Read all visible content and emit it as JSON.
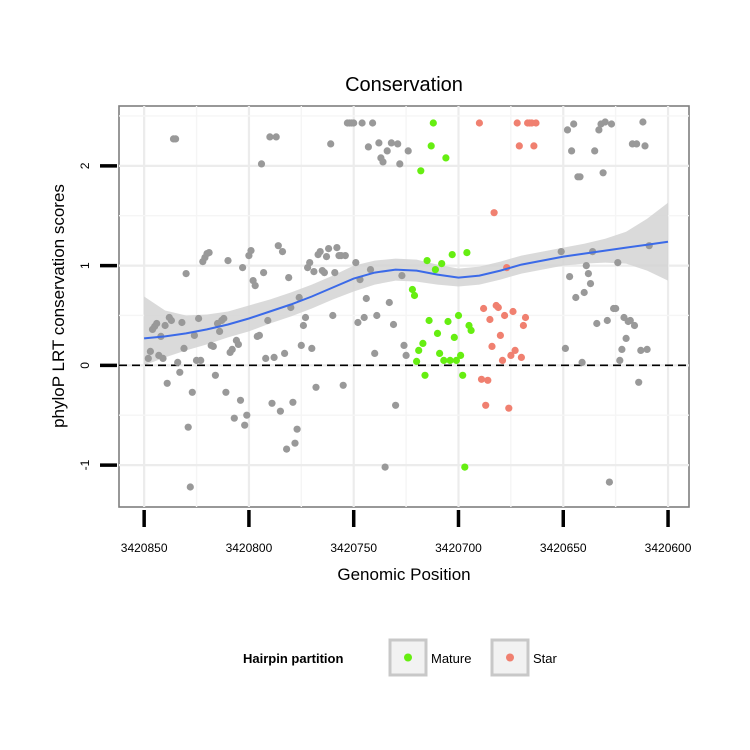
{
  "chart_data": {
    "type": "scatter",
    "title": "Conservation",
    "xlabel": "Genomic Position",
    "ylabel": "phyloP LRT conservation scores",
    "xlim": [
      3420862,
      3420590
    ],
    "ylim": [
      -1.42,
      2.6
    ],
    "x_reversed": true,
    "xticks": [
      {
        "value": 3420850,
        "label": "3420850"
      },
      {
        "value": 3420800,
        "label": "3420800"
      },
      {
        "value": 3420750,
        "label": "3420750"
      },
      {
        "value": 3420700,
        "label": "3420700"
      },
      {
        "value": 3420650,
        "label": "3420650"
      },
      {
        "value": 3420600,
        "label": "3420600"
      }
    ],
    "yticks": [
      {
        "value": -1,
        "label": "-1"
      },
      {
        "value": 0,
        "label": "0"
      },
      {
        "value": 1,
        "label": "1"
      },
      {
        "value": 2,
        "label": "2"
      }
    ],
    "grid": true,
    "reference_line": {
      "y": 0,
      "style": "dashed"
    },
    "legend": {
      "title": "Hairpin partition",
      "position": "bottom",
      "entries": [
        {
          "label": "Mature",
          "color": "#66ee11"
        },
        {
          "label": "Star",
          "color": "#f08070"
        }
      ]
    },
    "colors": {
      "other": "#999999",
      "mature": "#66ee11",
      "star": "#f08070",
      "smooth": "#3b6ae8",
      "band": "#d3d3d3"
    },
    "series": [
      {
        "group": "other",
        "points": [
          [
            3420848,
            0.07
          ],
          [
            3420847,
            0.14
          ],
          [
            3420846,
            0.36
          ],
          [
            3420845,
            0.39
          ],
          [
            3420844,
            0.42
          ],
          [
            3420843,
            0.1
          ],
          [
            3420842,
            0.29
          ],
          [
            3420841,
            0.07
          ],
          [
            3420840,
            0.4
          ],
          [
            3420839,
            -0.18
          ],
          [
            3420838,
            0.48
          ],
          [
            3420837,
            0.45
          ],
          [
            3420836,
            2.27
          ],
          [
            3420835,
            2.27
          ],
          [
            3420834,
            0.03
          ],
          [
            3420833,
            -0.07
          ],
          [
            3420832,
            0.43
          ],
          [
            3420831,
            0.17
          ],
          [
            3420830,
            0.92
          ],
          [
            3420829,
            -0.62
          ],
          [
            3420828,
            -1.22
          ],
          [
            3420827,
            -0.27
          ],
          [
            3420826,
            0.3
          ],
          [
            3420825,
            0.05
          ],
          [
            3420824,
            0.47
          ],
          [
            3420823,
            0.05
          ],
          [
            3420822,
            1.04
          ],
          [
            3420821,
            1.08
          ],
          [
            3420820,
            1.12
          ],
          [
            3420819,
            1.13
          ],
          [
            3420818,
            0.2
          ],
          [
            3420817,
            0.19
          ],
          [
            3420816,
            -0.1
          ],
          [
            3420815,
            0.42
          ],
          [
            3420814,
            0.34
          ],
          [
            3420813,
            0.45
          ],
          [
            3420812,
            0.47
          ],
          [
            3420811,
            -0.27
          ],
          [
            3420810,
            1.05
          ],
          [
            3420809,
            0.13
          ],
          [
            3420808,
            0.16
          ],
          [
            3420807,
            -0.53
          ],
          [
            3420806,
            0.25
          ],
          [
            3420805,
            0.21
          ],
          [
            3420804,
            -0.35
          ],
          [
            3420803,
            0.98
          ],
          [
            3420802,
            -0.6
          ],
          [
            3420801,
            -0.5
          ],
          [
            3420800,
            1.1
          ],
          [
            3420799,
            1.15
          ],
          [
            3420798,
            0.85
          ],
          [
            3420797,
            0.8
          ],
          [
            3420796,
            0.29
          ],
          [
            3420795,
            0.3
          ],
          [
            3420794,
            2.02
          ],
          [
            3420793,
            0.93
          ],
          [
            3420792,
            0.07
          ],
          [
            3420791,
            0.45
          ],
          [
            3420790,
            2.29
          ],
          [
            3420789,
            -0.38
          ],
          [
            3420788,
            0.08
          ],
          [
            3420787,
            2.29
          ],
          [
            3420786,
            1.2
          ],
          [
            3420785,
            -0.46
          ],
          [
            3420784,
            1.14
          ],
          [
            3420783,
            0.12
          ],
          [
            3420782,
            -0.84
          ],
          [
            3420781,
            0.88
          ],
          [
            3420780,
            0.58
          ],
          [
            3420779,
            -0.37
          ],
          [
            3420778,
            -0.78
          ],
          [
            3420777,
            -0.64
          ],
          [
            3420776,
            0.68
          ],
          [
            3420775,
            0.2
          ],
          [
            3420774,
            0.4
          ],
          [
            3420773,
            0.48
          ],
          [
            3420772,
            0.98
          ],
          [
            3420771,
            1.03
          ],
          [
            3420770,
            0.17
          ],
          [
            3420769,
            0.94
          ],
          [
            3420768,
            -0.22
          ],
          [
            3420767,
            1.11
          ],
          [
            3420766,
            1.14
          ],
          [
            3420765,
            0.95
          ],
          [
            3420764,
            0.93
          ],
          [
            3420763,
            1.09
          ],
          [
            3420762,
            1.17
          ],
          [
            3420761,
            2.22
          ],
          [
            3420760,
            0.5
          ],
          [
            3420759,
            0.93
          ],
          [
            3420758,
            1.18
          ],
          [
            3420757,
            1.1
          ],
          [
            3420756,
            1.1
          ],
          [
            3420755,
            -0.2
          ],
          [
            3420754,
            1.1
          ],
          [
            3420753,
            2.43
          ],
          [
            3420752,
            2.43
          ],
          [
            3420751,
            2.43
          ],
          [
            3420750,
            2.43
          ],
          [
            3420749,
            1.03
          ],
          [
            3420748,
            0.43
          ],
          [
            3420747,
            0.86
          ],
          [
            3420746,
            2.43
          ],
          [
            3420745,
            0.48
          ],
          [
            3420744,
            0.67
          ],
          [
            3420743,
            2.19
          ],
          [
            3420742,
            0.96
          ],
          [
            3420741,
            2.43
          ],
          [
            3420740,
            0.12
          ],
          [
            3420739,
            0.5
          ],
          [
            3420738,
            2.23
          ],
          [
            3420737,
            2.08
          ],
          [
            3420736,
            2.04
          ],
          [
            3420735,
            -1.02
          ],
          [
            3420734,
            2.15
          ],
          [
            3420733,
            0.63
          ],
          [
            3420732,
            2.23
          ],
          [
            3420731,
            0.41
          ],
          [
            3420730,
            -0.4
          ],
          [
            3420729,
            2.22
          ],
          [
            3420728,
            2.02
          ],
          [
            3420727,
            0.9
          ],
          [
            3420726,
            0.2
          ],
          [
            3420725,
            0.1
          ],
          [
            3420724,
            2.15
          ],
          [
            3420651,
            1.14
          ],
          [
            3420649,
            0.17
          ],
          [
            3420648,
            2.36
          ],
          [
            3420647,
            0.89
          ],
          [
            3420646,
            2.15
          ],
          [
            3420645,
            2.42
          ],
          [
            3420644,
            0.68
          ],
          [
            3420643,
            1.89
          ],
          [
            3420642,
            1.89
          ],
          [
            3420641,
            0.03
          ],
          [
            3420640,
            0.73
          ],
          [
            3420639,
            1.0
          ],
          [
            3420638,
            0.92
          ],
          [
            3420637,
            0.82
          ],
          [
            3420636,
            1.14
          ],
          [
            3420635,
            2.15
          ],
          [
            3420634,
            0.42
          ],
          [
            3420633,
            2.36
          ],
          [
            3420632,
            2.42
          ],
          [
            3420631,
            1.93
          ],
          [
            3420630,
            2.44
          ],
          [
            3420629,
            0.45
          ],
          [
            3420628,
            -1.17
          ],
          [
            3420627,
            2.42
          ],
          [
            3420626,
            0.57
          ],
          [
            3420625,
            0.57
          ],
          [
            3420624,
            1.03
          ],
          [
            3420623,
            0.05
          ],
          [
            3420622,
            0.16
          ],
          [
            3420621,
            0.48
          ],
          [
            3420620,
            0.27
          ],
          [
            3420619,
            0.44
          ],
          [
            3420618,
            0.45
          ],
          [
            3420617,
            2.22
          ],
          [
            3420616,
            0.4
          ],
          [
            3420615,
            2.22
          ],
          [
            3420614,
            -0.17
          ],
          [
            3420613,
            0.15
          ],
          [
            3420612,
            2.44
          ],
          [
            3420611,
            2.2
          ],
          [
            3420610,
            0.16
          ],
          [
            3420609,
            1.2
          ]
        ]
      },
      {
        "group": "mature",
        "name": "Mature",
        "points": [
          [
            3420722,
            0.76
          ],
          [
            3420721,
            0.7
          ],
          [
            3420720,
            0.04
          ],
          [
            3420719,
            0.15
          ],
          [
            3420718,
            1.95
          ],
          [
            3420717,
            0.22
          ],
          [
            3420716,
            -0.1
          ],
          [
            3420715,
            1.05
          ],
          [
            3420714,
            0.45
          ],
          [
            3420713,
            2.2
          ],
          [
            3420712,
            2.43
          ],
          [
            3420711,
            0.96
          ],
          [
            3420710,
            0.32
          ],
          [
            3420709,
            0.12
          ],
          [
            3420708,
            1.02
          ],
          [
            3420707,
            0.05
          ],
          [
            3420706,
            2.08
          ],
          [
            3420705,
            0.44
          ],
          [
            3420704,
            0.05
          ],
          [
            3420703,
            1.11
          ],
          [
            3420702,
            0.28
          ],
          [
            3420701,
            0.05
          ],
          [
            3420700,
            0.5
          ],
          [
            3420699,
            0.1
          ],
          [
            3420698,
            -0.1
          ],
          [
            3420697,
            -1.02
          ],
          [
            3420696,
            1.13
          ],
          [
            3420695,
            0.4
          ],
          [
            3420694,
            0.35
          ]
        ]
      },
      {
        "group": "star",
        "name": "Star",
        "points": [
          [
            3420690,
            2.43
          ],
          [
            3420689,
            -0.14
          ],
          [
            3420688,
            0.57
          ],
          [
            3420687,
            -0.4
          ],
          [
            3420686,
            -0.15
          ],
          [
            3420685,
            0.46
          ],
          [
            3420684,
            0.19
          ],
          [
            3420683,
            1.53
          ],
          [
            3420682,
            0.6
          ],
          [
            3420681,
            0.58
          ],
          [
            3420680,
            0.3
          ],
          [
            3420679,
            0.05
          ],
          [
            3420678,
            0.5
          ],
          [
            3420677,
            0.98
          ],
          [
            3420676,
            -0.43
          ],
          [
            3420675,
            0.1
          ],
          [
            3420674,
            0.54
          ],
          [
            3420673,
            0.15
          ],
          [
            3420672,
            2.43
          ],
          [
            3420671,
            2.2
          ],
          [
            3420670,
            0.08
          ],
          [
            3420669,
            0.4
          ],
          [
            3420668,
            0.48
          ],
          [
            3420667,
            2.43
          ],
          [
            3420666,
            2.43
          ],
          [
            3420665,
            2.43
          ],
          [
            3420664,
            2.2
          ],
          [
            3420663,
            2.43
          ]
        ]
      }
    ],
    "smooth": {
      "x": [
        3420850,
        3420840,
        3420830,
        3420820,
        3420810,
        3420800,
        3420790,
        3420780,
        3420770,
        3420760,
        3420750,
        3420740,
        3420730,
        3420720,
        3420710,
        3420700,
        3420690,
        3420680,
        3420670,
        3420660,
        3420650,
        3420640,
        3420630,
        3420620,
        3420610,
        3420600
      ],
      "y": [
        0.27,
        0.29,
        0.32,
        0.36,
        0.41,
        0.47,
        0.54,
        0.61,
        0.69,
        0.78,
        0.87,
        0.93,
        0.96,
        0.95,
        0.91,
        0.88,
        0.9,
        0.95,
        1.01,
        1.05,
        1.09,
        1.12,
        1.15,
        1.18,
        1.21,
        1.24
      ],
      "lower": [
        0.0,
        0.08,
        0.15,
        0.21,
        0.28,
        0.34,
        0.42,
        0.49,
        0.57,
        0.66,
        0.74,
        0.81,
        0.85,
        0.84,
        0.81,
        0.79,
        0.81,
        0.86,
        0.92,
        0.96,
        1.0,
        1.02,
        1.03,
        1.02,
        0.95,
        0.85
      ],
      "upper": [
        0.69,
        0.55,
        0.5,
        0.51,
        0.54,
        0.6,
        0.66,
        0.73,
        0.81,
        0.9,
        1.0,
        1.05,
        1.07,
        1.06,
        1.01,
        0.97,
        0.99,
        1.04,
        1.1,
        1.14,
        1.18,
        1.22,
        1.27,
        1.34,
        1.47,
        1.63
      ]
    }
  }
}
